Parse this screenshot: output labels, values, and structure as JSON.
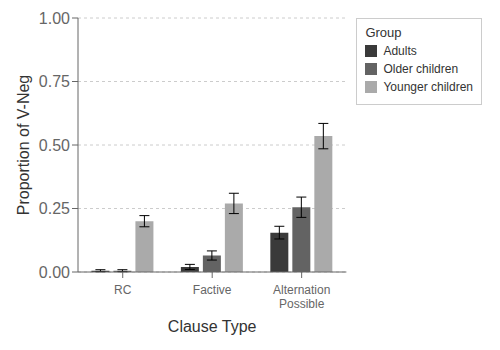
{
  "chart_data": {
    "type": "bar",
    "xlabel": "Clause Type",
    "ylabel": "Proportion of V-Neg",
    "legend_title": "Group",
    "categories": [
      "RC",
      "Factive",
      "Alternation\nPossible"
    ],
    "series": [
      {
        "name": "Adults",
        "color": "#3a3a3a",
        "values": [
          0.005,
          0.02,
          0.155
        ],
        "errors": [
          0.004,
          0.01,
          0.025
        ]
      },
      {
        "name": "Older children",
        "color": "#636363",
        "values": [
          0.005,
          0.065,
          0.255
        ],
        "errors": [
          0.004,
          0.018,
          0.04
        ]
      },
      {
        "name": "Younger children",
        "color": "#aaaaaa",
        "values": [
          0.2,
          0.27,
          0.535
        ],
        "errors": [
          0.022,
          0.04,
          0.05
        ]
      }
    ],
    "ylim": [
      0,
      1.0
    ],
    "yticks": [
      {
        "value": 0.0,
        "label": "0.00"
      },
      {
        "value": 0.25,
        "label": "0.25"
      },
      {
        "value": 0.5,
        "label": "0.50"
      },
      {
        "value": 0.75,
        "label": "0.75"
      },
      {
        "value": 1.0,
        "label": "1.00"
      }
    ],
    "grid": true,
    "legend": "right"
  }
}
